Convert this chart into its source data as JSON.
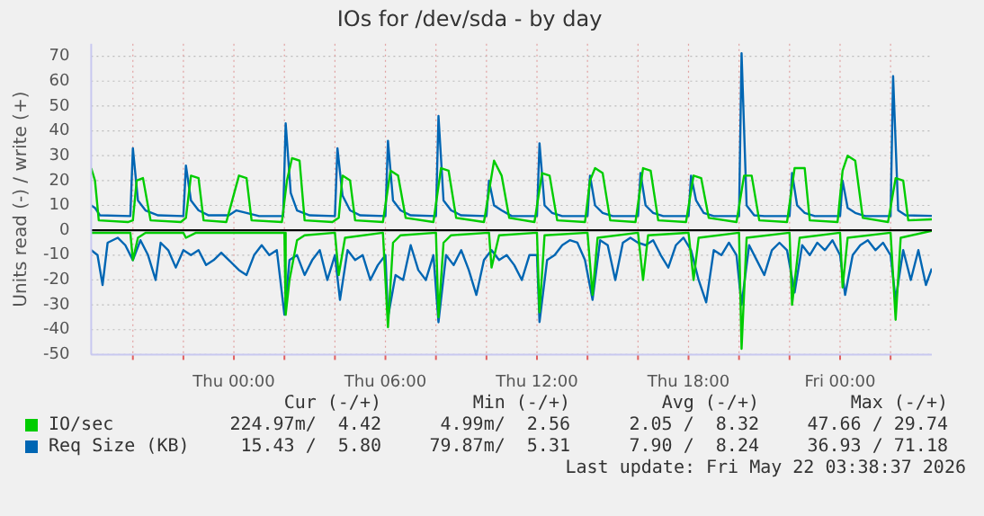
{
  "chart_data": {
    "type": "line",
    "title": "IOs for /dev/sda - by day",
    "ylabel": "Units read (-) / write (+)",
    "xlim": [
      "2026-05-20T18:21",
      "2026-05-22T03:38"
    ],
    "xticks": [
      {
        "value": "2026-05-20T20:00",
        "label": null
      },
      {
        "value": "2026-05-20T22:00",
        "label": null
      },
      {
        "value": "2026-05-21T00:00",
        "label": "Thu 00:00"
      },
      {
        "value": "2026-05-21T02:00",
        "label": null
      },
      {
        "value": "2026-05-21T04:00",
        "label": null
      },
      {
        "value": "2026-05-21T06:00",
        "label": "Thu 06:00"
      },
      {
        "value": "2026-05-21T08:00",
        "label": null
      },
      {
        "value": "2026-05-21T10:00",
        "label": null
      },
      {
        "value": "2026-05-21T12:00",
        "label": "Thu 12:00"
      },
      {
        "value": "2026-05-21T14:00",
        "label": null
      },
      {
        "value": "2026-05-21T16:00",
        "label": null
      },
      {
        "value": "2026-05-21T18:00",
        "label": "Thu 18:00"
      },
      {
        "value": "2026-05-21T20:00",
        "label": null
      },
      {
        "value": "2026-05-21T22:00",
        "label": null
      },
      {
        "value": "2026-05-22T00:00",
        "label": "Fri 00:00"
      },
      {
        "value": "2026-05-22T02:00",
        "label": null
      }
    ],
    "ylim": [
      -50,
      75
    ],
    "yticks": [
      -50,
      -40,
      -30,
      -20,
      -10,
      0,
      10,
      20,
      30,
      40,
      50,
      60,
      70
    ],
    "grid": true,
    "legend": "bottom",
    "marker": "none",
    "line_style": "solid",
    "ref_lines": [
      {
        "axis": "y",
        "value": 0,
        "color": "#000000"
      }
    ],
    "annotations": [
      "Cur (-/+)",
      "Min (-/+)",
      "Avg (-/+)",
      "Max (-/+)",
      "224.97m/  4.42",
      "4.99m/  2.56",
      "2.05 /  8.32",
      "47.66 / 29.74",
      "15.43 /  5.80",
      "79.87m/  5.31",
      "7.90 /  8.24",
      "36.93 / 71.18",
      "Last update: Fri May 22 03:38:37 2026"
    ],
    "series": [
      {
        "name": "IO/sec",
        "color": "#00cc00",
        "x": [
          "2026-05-20T18:21",
          "2026-05-20T18:30",
          "2026-05-20T18:39",
          "2026-05-20T19:48",
          "2026-05-20T20:00",
          "2026-05-20T20:09",
          "2026-05-20T20:24",
          "2026-05-20T20:42",
          "2026-05-20T21:54",
          "2026-05-20T22:06",
          "2026-05-20T22:18",
          "2026-05-20T22:36",
          "2026-05-20T22:48",
          "2026-05-20T23:42",
          "2026-05-21T00:12",
          "2026-05-21T00:30",
          "2026-05-21T00:42",
          "2026-05-21T01:54",
          "2026-05-21T02:06",
          "2026-05-21T02:18",
          "2026-05-21T02:36",
          "2026-05-21T02:48",
          "2026-05-21T03:54",
          "2026-05-21T04:09",
          "2026-05-21T04:18",
          "2026-05-21T04:36",
          "2026-05-21T04:48",
          "2026-05-21T05:54",
          "2026-05-21T06:12",
          "2026-05-21T06:30",
          "2026-05-21T06:48",
          "2026-05-21T07:54",
          "2026-05-21T08:12",
          "2026-05-21T08:30",
          "2026-05-21T08:48",
          "2026-05-21T09:54",
          "2026-05-21T10:18",
          "2026-05-21T10:36",
          "2026-05-21T10:54",
          "2026-05-21T11:54",
          "2026-05-21T12:12",
          "2026-05-21T12:30",
          "2026-05-21T12:48",
          "2026-05-21T13:54",
          "2026-05-21T14:06",
          "2026-05-21T14:18",
          "2026-05-21T14:36",
          "2026-05-21T14:54",
          "2026-05-21T15:54",
          "2026-05-21T16:12",
          "2026-05-21T16:30",
          "2026-05-21T16:48",
          "2026-05-21T17:54",
          "2026-05-21T18:12",
          "2026-05-21T18:30",
          "2026-05-21T18:48",
          "2026-05-21T19:54",
          "2026-05-21T20:12",
          "2026-05-21T20:30",
          "2026-05-21T20:48",
          "2026-05-21T21:54",
          "2026-05-21T22:12",
          "2026-05-21T22:36",
          "2026-05-21T22:48",
          "2026-05-21T23:54",
          "2026-05-22T00:06",
          "2026-05-22T00:18",
          "2026-05-22T00:36",
          "2026-05-22T00:54",
          "2026-05-22T01:54",
          "2026-05-22T02:12",
          "2026-05-22T02:30",
          "2026-05-22T02:42",
          "2026-05-22T03:38"
        ],
        "values": [
          25,
          20,
          4,
          3.3,
          4,
          20,
          21,
          4,
          3.3,
          5,
          22,
          21,
          4,
          3.3,
          22,
          21,
          4,
          3.3,
          20,
          29,
          28,
          4,
          3.3,
          5,
          22,
          20,
          4,
          3.3,
          24,
          22,
          5,
          3.3,
          25,
          24,
          5,
          3.3,
          28,
          22,
          5,
          3.3,
          23,
          22,
          4,
          3.3,
          20,
          25,
          23,
          4,
          3.3,
          25,
          24,
          4,
          3.3,
          22,
          21,
          5,
          3.3,
          22,
          22,
          4,
          3.3,
          25,
          25,
          4,
          3.3,
          24,
          30,
          28,
          5,
          3.3,
          21,
          20,
          4,
          4.4
        ]
      },
      {
        "color": "#00cc00",
        "x": [
          "2026-05-20T18:21",
          "2026-05-20T19:54",
          "2026-05-20T20:00",
          "2026-05-20T20:12",
          "2026-05-20T20:30",
          "2026-05-20T22:00",
          "2026-05-20T22:06",
          "2026-05-20T22:30",
          "2026-05-21T02:00",
          "2026-05-21T02:03",
          "2026-05-21T02:12",
          "2026-05-21T02:30",
          "2026-05-21T02:48",
          "2026-05-21T04:00",
          "2026-05-21T04:09",
          "2026-05-21T04:24",
          "2026-05-21T05:54",
          "2026-05-21T06:06",
          "2026-05-21T06:18",
          "2026-05-21T06:36",
          "2026-05-21T08:00",
          "2026-05-21T08:06",
          "2026-05-21T08:18",
          "2026-05-21T08:36",
          "2026-05-21T10:06",
          "2026-05-21T10:12",
          "2026-05-21T10:30",
          "2026-05-21T12:00",
          "2026-05-21T12:06",
          "2026-05-21T12:18",
          "2026-05-21T14:00",
          "2026-05-21T14:12",
          "2026-05-21T14:24",
          "2026-05-21T16:00",
          "2026-05-21T16:12",
          "2026-05-21T16:24",
          "2026-05-21T18:00",
          "2026-05-21T18:12",
          "2026-05-21T18:24",
          "2026-05-21T20:00",
          "2026-05-21T20:06",
          "2026-05-21T20:18",
          "2026-05-21T22:00",
          "2026-05-21T22:06",
          "2026-05-21T22:24",
          "2026-05-22T00:00",
          "2026-05-22T00:06",
          "2026-05-22T00:18",
          "2026-05-22T02:00",
          "2026-05-22T02:12",
          "2026-05-22T02:24",
          "2026-05-22T03:38"
        ],
        "values": [
          -1,
          -1,
          -12,
          -3,
          -1,
          -1,
          -3,
          -1,
          -1,
          -34,
          -20,
          -4,
          -2,
          -1,
          -18,
          -3,
          -1,
          -39,
          -5,
          -2,
          -1,
          -35,
          -5,
          -2,
          -1,
          -15,
          -2,
          -1,
          -33,
          -2,
          -1,
          -26,
          -3,
          -1,
          -20,
          -2,
          -1,
          -20,
          -3,
          -1,
          -47.7,
          -3,
          -1,
          -30,
          -3,
          -1,
          -23,
          -3,
          -1,
          -36,
          -3,
          -0.2
        ]
      },
      {
        "name": "Req Size (KB)",
        "color": "#0066b3",
        "x": [
          "2026-05-20T18:21",
          "2026-05-20T18:30",
          "2026-05-20T18:42",
          "2026-05-20T19:54",
          "2026-05-20T20:00",
          "2026-05-20T20:12",
          "2026-05-20T20:30",
          "2026-05-20T21:00",
          "2026-05-20T22:00",
          "2026-05-20T22:06",
          "2026-05-20T22:18",
          "2026-05-20T22:36",
          "2026-05-20T23:00",
          "2026-05-20T23:48",
          "2026-05-21T00:06",
          "2026-05-21T00:30",
          "2026-05-21T01:00",
          "2026-05-21T01:57",
          "2026-05-21T02:03",
          "2026-05-21T02:15",
          "2026-05-21T02:30",
          "2026-05-21T03:00",
          "2026-05-21T04:00",
          "2026-05-21T04:06",
          "2026-05-21T04:18",
          "2026-05-21T04:36",
          "2026-05-21T05:00",
          "2026-05-21T06:00",
          "2026-05-21T06:06",
          "2026-05-21T06:18",
          "2026-05-21T06:36",
          "2026-05-21T07:00",
          "2026-05-21T08:00",
          "2026-05-21T08:06",
          "2026-05-21T08:18",
          "2026-05-21T08:36",
          "2026-05-21T09:00",
          "2026-05-21T10:00",
          "2026-05-21T10:06",
          "2026-05-21T10:18",
          "2026-05-21T10:36",
          "2026-05-21T11:00",
          "2026-05-21T12:00",
          "2026-05-21T12:06",
          "2026-05-21T12:18",
          "2026-05-21T12:36",
          "2026-05-21T13:00",
          "2026-05-21T14:00",
          "2026-05-21T14:06",
          "2026-05-21T14:18",
          "2026-05-21T14:36",
          "2026-05-21T15:00",
          "2026-05-21T16:00",
          "2026-05-21T16:06",
          "2026-05-21T16:18",
          "2026-05-21T16:36",
          "2026-05-21T17:00",
          "2026-05-21T18:00",
          "2026-05-21T18:06",
          "2026-05-21T18:18",
          "2026-05-21T18:36",
          "2026-05-21T19:00",
          "2026-05-21T20:00",
          "2026-05-21T20:06",
          "2026-05-21T20:18",
          "2026-05-21T20:36",
          "2026-05-21T21:00",
          "2026-05-21T22:00",
          "2026-05-21T22:06",
          "2026-05-21T22:18",
          "2026-05-21T22:36",
          "2026-05-21T23:00",
          "2026-05-22T00:00",
          "2026-05-22T00:06",
          "2026-05-22T00:18",
          "2026-05-22T00:36",
          "2026-05-22T01:00",
          "2026-05-22T02:00",
          "2026-05-22T02:06",
          "2026-05-22T02:18",
          "2026-05-22T02:36",
          "2026-05-22T03:38"
        ],
        "values": [
          10,
          9,
          6,
          5.7,
          33,
          12,
          8,
          6,
          5.7,
          26,
          12,
          8,
          6,
          6,
          8,
          7,
          5.7,
          5.7,
          43,
          15,
          8,
          6,
          5.7,
          33,
          14,
          8,
          6,
          5.7,
          36,
          12,
          8,
          6,
          5.7,
          46,
          12,
          8,
          6,
          5.7,
          20,
          10,
          8,
          5.7,
          5.7,
          35,
          10,
          7,
          5.7,
          5.7,
          22,
          10,
          7,
          5.7,
          5.7,
          23,
          10,
          7,
          5.7,
          5.7,
          22,
          12,
          7,
          5.7,
          5.7,
          71.2,
          10,
          6,
          5.7,
          5.7,
          23,
          10,
          7,
          5.7,
          5.7,
          20,
          9,
          7,
          5.7,
          5.7,
          62,
          8,
          6,
          5.8
        ]
      },
      {
        "color": "#0066b3",
        "x": [
          "2026-05-20T18:21",
          "2026-05-20T18:36",
          "2026-05-20T18:48",
          "2026-05-20T19:00",
          "2026-05-20T19:24",
          "2026-05-20T19:42",
          "2026-05-20T20:00",
          "2026-05-20T20:18",
          "2026-05-20T20:36",
          "2026-05-20T20:54",
          "2026-05-20T21:06",
          "2026-05-20T21:24",
          "2026-05-20T21:42",
          "2026-05-20T22:00",
          "2026-05-20T22:18",
          "2026-05-20T22:36",
          "2026-05-20T22:54",
          "2026-05-20T23:12",
          "2026-05-20T23:30",
          "2026-05-20T23:48",
          "2026-05-21T00:12",
          "2026-05-21T00:30",
          "2026-05-21T00:48",
          "2026-05-21T01:06",
          "2026-05-21T01:24",
          "2026-05-21T01:42",
          "2026-05-21T02:00",
          "2026-05-21T02:12",
          "2026-05-21T02:30",
          "2026-05-21T02:48",
          "2026-05-21T03:06",
          "2026-05-21T03:24",
          "2026-05-21T03:42",
          "2026-05-21T04:00",
          "2026-05-21T04:12",
          "2026-05-21T04:30",
          "2026-05-21T04:48",
          "2026-05-21T05:06",
          "2026-05-21T05:24",
          "2026-05-21T05:42",
          "2026-05-21T06:00",
          "2026-05-21T06:06",
          "2026-05-21T06:24",
          "2026-05-21T06:42",
          "2026-05-21T07:00",
          "2026-05-21T07:18",
          "2026-05-21T07:36",
          "2026-05-21T07:54",
          "2026-05-21T08:06",
          "2026-05-21T08:24",
          "2026-05-21T08:42",
          "2026-05-21T09:00",
          "2026-05-21T09:18",
          "2026-05-21T09:36",
          "2026-05-21T09:54",
          "2026-05-21T10:12",
          "2026-05-21T10:30",
          "2026-05-21T10:48",
          "2026-05-21T11:06",
          "2026-05-21T11:24",
          "2026-05-21T11:42",
          "2026-05-21T12:00",
          "2026-05-21T12:06",
          "2026-05-21T12:24",
          "2026-05-21T12:42",
          "2026-05-21T13:00",
          "2026-05-21T13:18",
          "2026-05-21T13:36",
          "2026-05-21T13:54",
          "2026-05-21T14:12",
          "2026-05-21T14:30",
          "2026-05-21T14:48",
          "2026-05-21T15:06",
          "2026-05-21T15:24",
          "2026-05-21T15:42",
          "2026-05-21T16:00",
          "2026-05-21T16:18",
          "2026-05-21T16:36",
          "2026-05-21T16:54",
          "2026-05-21T17:12",
          "2026-05-21T17:30",
          "2026-05-21T17:48",
          "2026-05-21T18:06",
          "2026-05-21T18:24",
          "2026-05-21T18:42",
          "2026-05-21T19:00",
          "2026-05-21T19:18",
          "2026-05-21T19:36",
          "2026-05-21T19:54",
          "2026-05-21T20:06",
          "2026-05-21T20:24",
          "2026-05-21T20:42",
          "2026-05-21T21:00",
          "2026-05-21T21:18",
          "2026-05-21T21:36",
          "2026-05-21T21:54",
          "2026-05-21T22:12",
          "2026-05-21T22:30",
          "2026-05-21T22:48",
          "2026-05-21T23:06",
          "2026-05-21T23:24",
          "2026-05-21T23:42",
          "2026-05-22T00:00",
          "2026-05-22T00:12",
          "2026-05-22T00:30",
          "2026-05-22T00:48",
          "2026-05-22T01:06",
          "2026-05-22T01:24",
          "2026-05-22T01:42",
          "2026-05-22T02:00",
          "2026-05-22T02:12",
          "2026-05-22T02:30",
          "2026-05-22T02:48",
          "2026-05-22T03:06",
          "2026-05-22T03:24",
          "2026-05-22T03:38"
        ],
        "values": [
          -8,
          -10,
          -22,
          -5,
          -3,
          -6,
          -12,
          -4,
          -10,
          -20,
          -5,
          -8,
          -15,
          -8,
          -10,
          -8,
          -14,
          -12,
          -9,
          -12,
          -16,
          -18,
          -10,
          -6,
          -10,
          -8,
          -34,
          -12,
          -10,
          -18,
          -12,
          -8,
          -20,
          -10,
          -28,
          -8,
          -12,
          -10,
          -20,
          -14,
          -10,
          -35,
          -18,
          -20,
          -6,
          -16,
          -20,
          -10,
          -37,
          -10,
          -14,
          -8,
          -16,
          -26,
          -12,
          -8,
          -12,
          -10,
          -14,
          -20,
          -10,
          -10,
          -36.9,
          -12,
          -10,
          -6,
          -4,
          -5,
          -12,
          -28,
          -4,
          -6,
          -20,
          -5,
          -3,
          -5,
          -6,
          -4,
          -10,
          -15,
          -6,
          -3,
          -8,
          -20,
          -29,
          -8,
          -10,
          -5,
          -10,
          -30,
          -6,
          -12,
          -18,
          -8,
          -5,
          -8,
          -25,
          -6,
          -10,
          -5,
          -8,
          -4,
          -10,
          -26,
          -10,
          -6,
          -4,
          -8,
          -5,
          -10,
          -28,
          -8,
          -20,
          -8,
          -22,
          -15.4
        ]
      }
    ]
  }
}
